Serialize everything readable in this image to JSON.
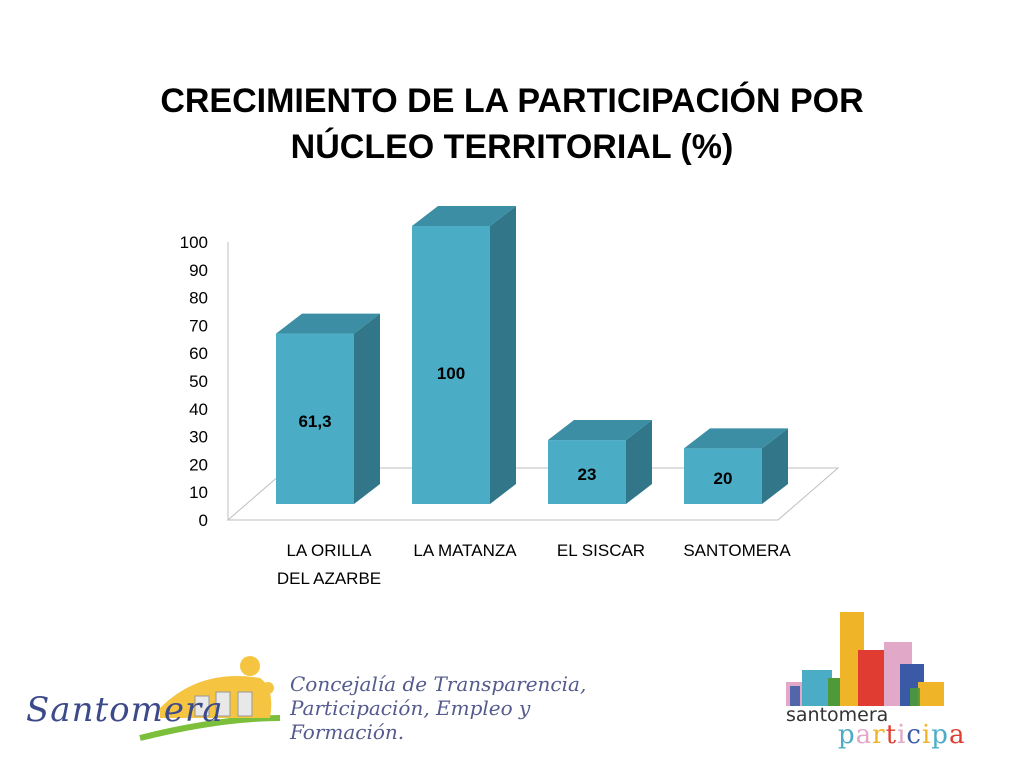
{
  "title": {
    "line1": "CRECIMIENTO DE LA PARTICIPACIÓN POR",
    "line2": "NÚCLEO TERRITORIAL (%)"
  },
  "chart_data": {
    "type": "bar",
    "title": "CRECIMIENTO DE LA PARTICIPACIÓN POR NÚCLEO TERRITORIAL (%)",
    "categories": [
      [
        "LA ORILLA",
        "DEL AZARBE"
      ],
      [
        "LA MATANZA"
      ],
      [
        "EL SISCAR"
      ],
      [
        "SANTOMERA"
      ]
    ],
    "values": [
      61.3,
      100,
      23,
      20
    ],
    "value_labels": [
      "61,3",
      "100",
      "23",
      "20"
    ],
    "yticks": [
      "0",
      "10",
      "20",
      "30",
      "40",
      "50",
      "60",
      "70",
      "80",
      "90",
      "100"
    ],
    "ylim": [
      0,
      100
    ],
    "grid": false,
    "style": "3d-column",
    "colors": {
      "front": "#4bacc6",
      "side": "#317789",
      "top": "#3b8ea4"
    }
  },
  "footer": {
    "logo_left_text": "Santomera",
    "concejalia_line1": "Concejalía de Transparencia,",
    "concejalia_line2": "Participación, Empleo y Formación.",
    "logo_right_line1": "santomera",
    "logo_right_line2": [
      "p",
      "a",
      "r",
      "t",
      "i",
      "c",
      "i",
      "p",
      "a"
    ],
    "logo_right_colors": [
      "#4bacc6",
      "#e2a8c8",
      "#f0b429",
      "#e03c31",
      "#e2a8c8",
      "#3b5aa6",
      "#f0b429",
      "#4bacc6",
      "#e03c31"
    ]
  }
}
